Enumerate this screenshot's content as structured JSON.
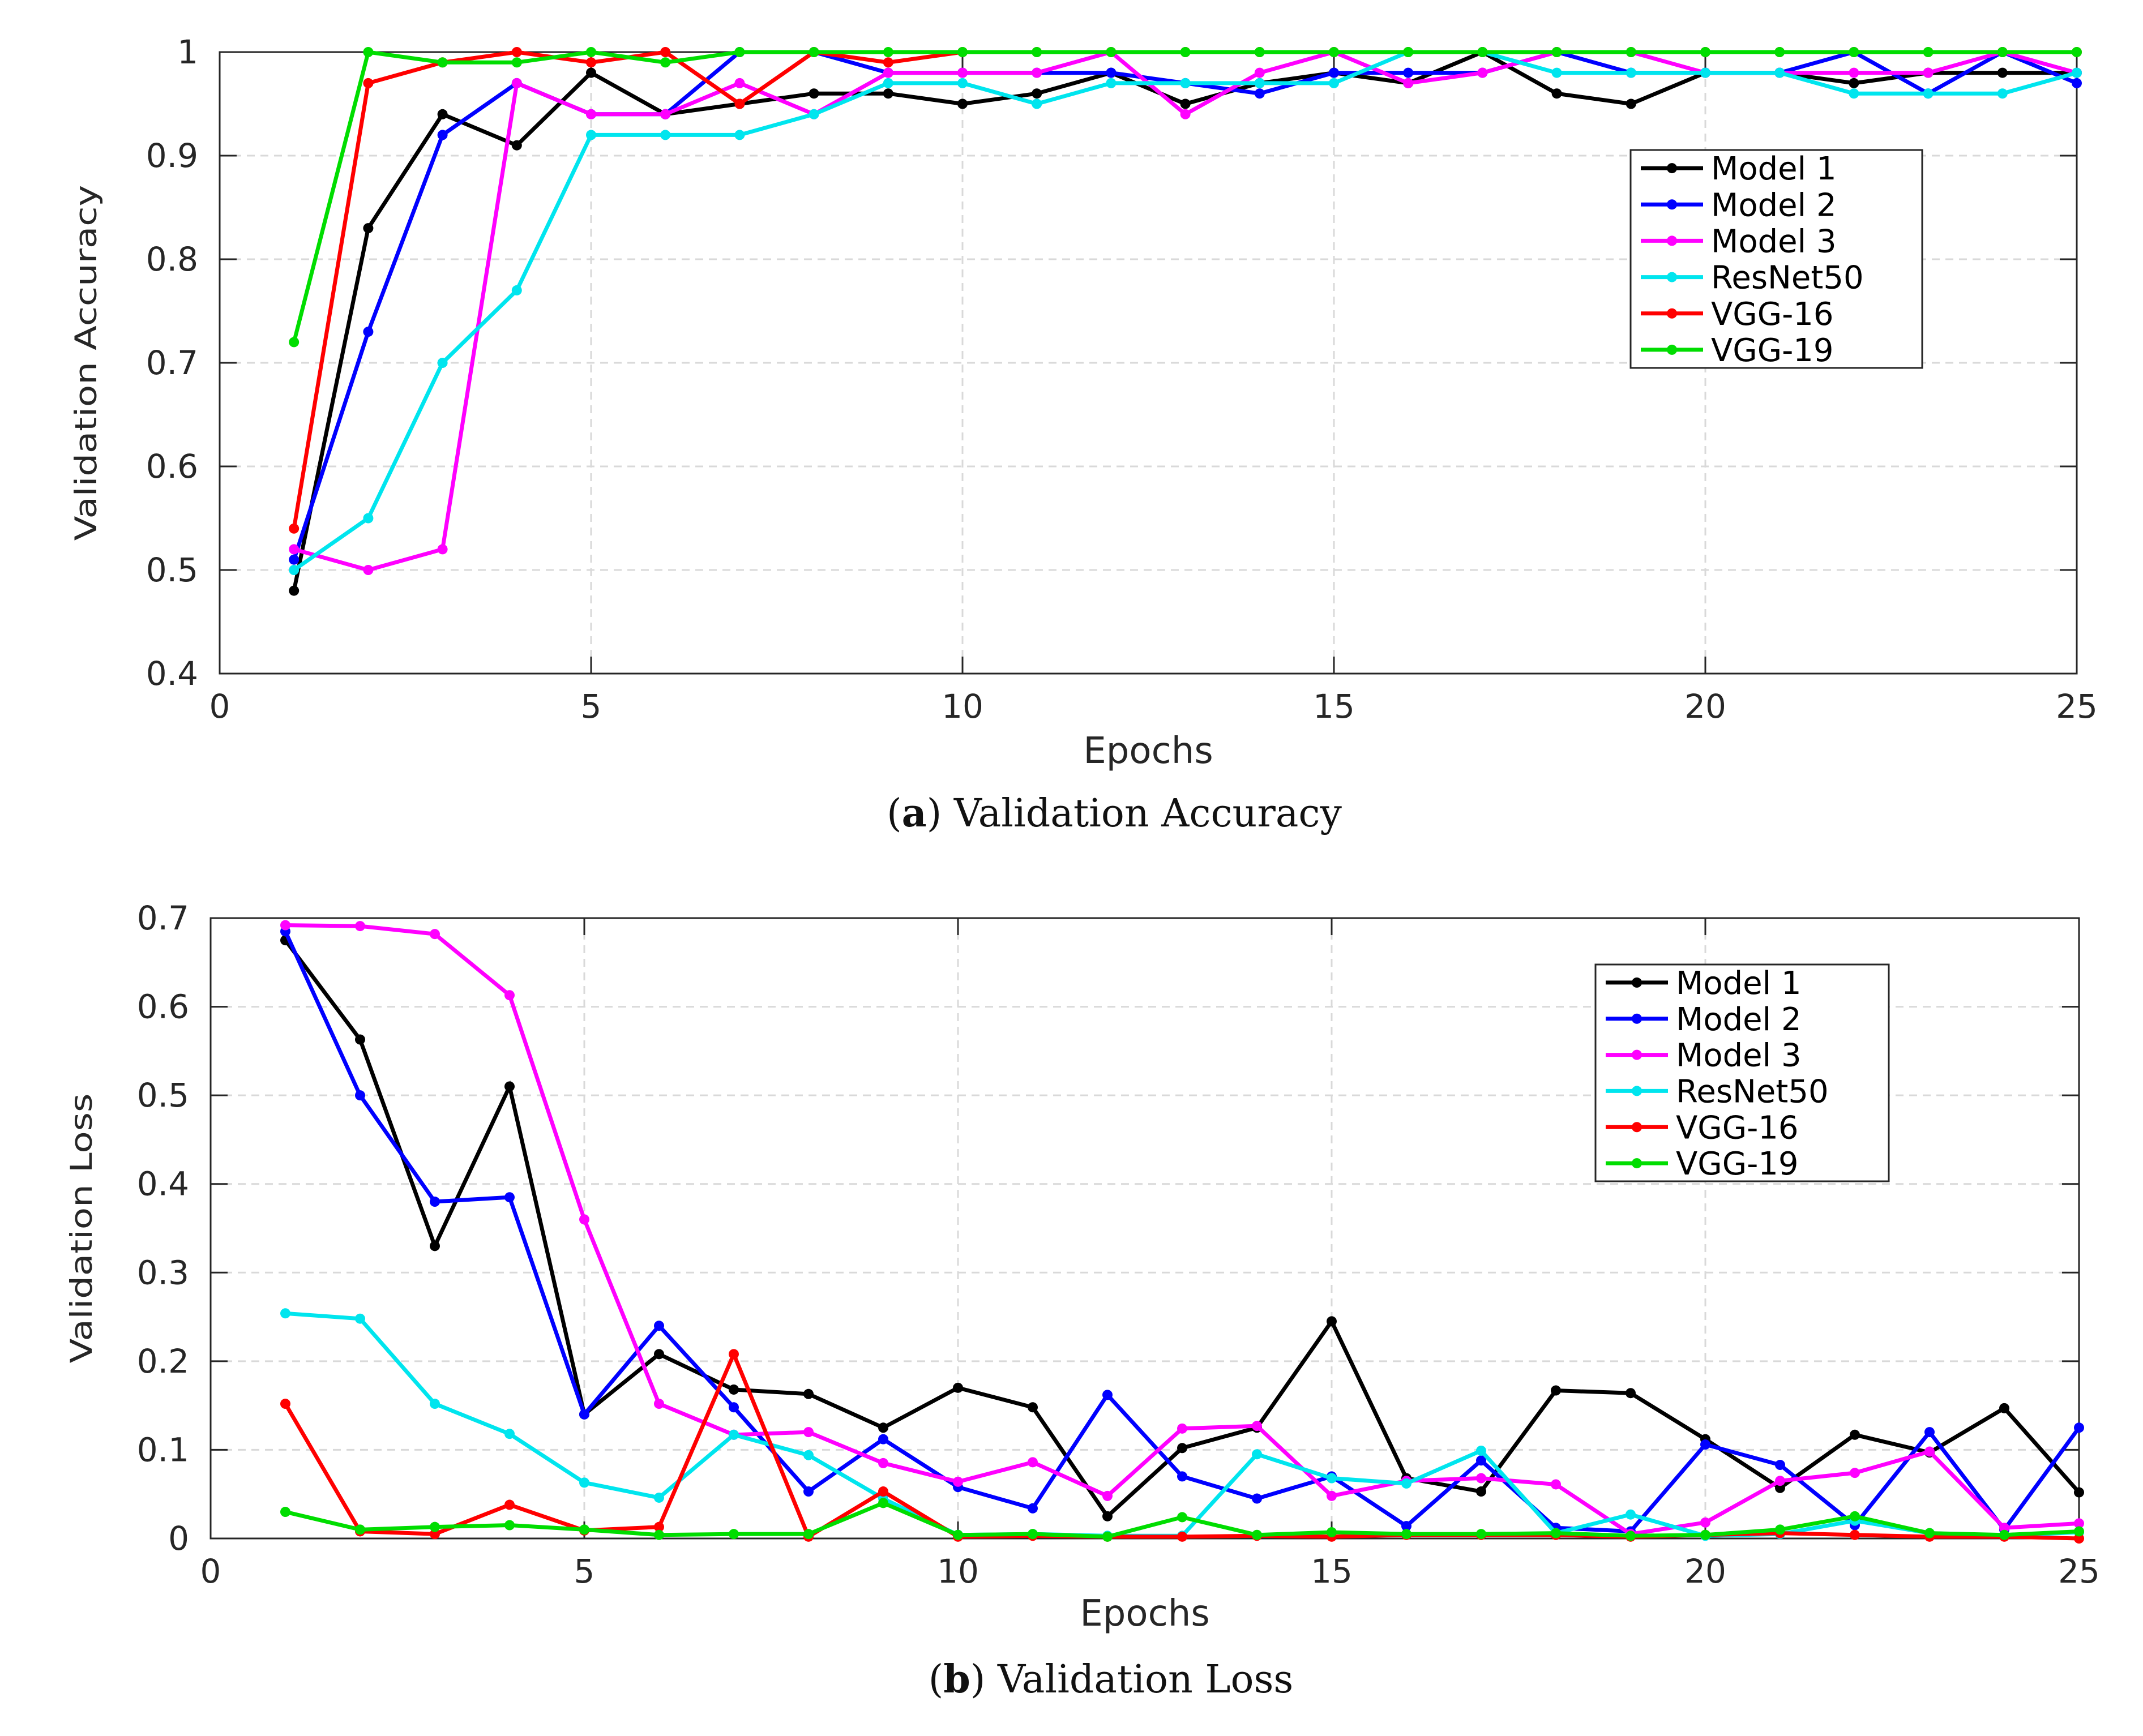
{
  "chart_data": [
    {
      "type": "line",
      "panel_letter": "a",
      "title": "Validation Accuracy",
      "xlabel": "Epochs",
      "ylabel": "Validation Accuracy",
      "xlim": [
        0,
        25
      ],
      "ylim": [
        0.4,
        1
      ],
      "xticks": [
        0,
        5,
        10,
        15,
        20,
        25
      ],
      "xtick_labels": [
        "0",
        "5",
        "10",
        "15",
        "20",
        "25"
      ],
      "yticks": [
        0.4,
        0.5,
        0.6,
        0.7,
        0.8,
        0.9,
        1
      ],
      "ytick_labels": [
        "0.4",
        "0.5",
        "0.6",
        "0.7",
        "0.8",
        "0.9",
        "1"
      ],
      "grid": true,
      "legend_position": "top-right",
      "x": [
        1,
        2,
        3,
        4,
        5,
        6,
        7,
        8,
        9,
        10,
        11,
        12,
        13,
        14,
        15,
        16,
        17,
        18,
        19,
        20,
        21,
        22,
        23,
        24,
        25
      ],
      "series": [
        {
          "name": "Model 1",
          "color": "#000000",
          "values": [
            0.48,
            0.83,
            0.94,
            0.91,
            0.98,
            0.94,
            0.95,
            0.96,
            0.96,
            0.95,
            0.96,
            0.98,
            0.95,
            0.97,
            0.98,
            0.97,
            1.0,
            0.96,
            0.95,
            0.98,
            0.98,
            0.97,
            0.98,
            0.98,
            0.98
          ]
        },
        {
          "name": "Model 2",
          "color": "#0000ff",
          "values": [
            0.51,
            0.73,
            0.92,
            0.97,
            0.94,
            0.94,
            1.0,
            1.0,
            0.98,
            0.98,
            0.98,
            0.98,
            0.97,
            0.96,
            0.98,
            0.98,
            0.98,
            1.0,
            0.98,
            0.98,
            0.98,
            1.0,
            0.96,
            1.0,
            0.97
          ]
        },
        {
          "name": "Model 3",
          "color": "#ff00ff",
          "values": [
            0.52,
            0.5,
            0.52,
            0.97,
            0.94,
            0.94,
            0.97,
            0.94,
            0.98,
            0.98,
            0.98,
            1.0,
            0.94,
            0.98,
            1.0,
            0.97,
            0.98,
            1.0,
            1.0,
            0.98,
            0.98,
            0.98,
            0.98,
            1.0,
            0.98
          ]
        },
        {
          "name": "ResNet50",
          "color": "#00e5ee",
          "values": [
            0.5,
            0.55,
            0.7,
            0.77,
            0.92,
            0.92,
            0.92,
            0.94,
            0.97,
            0.97,
            0.95,
            0.97,
            0.97,
            0.97,
            0.97,
            1.0,
            1.0,
            0.98,
            0.98,
            0.98,
            0.98,
            0.96,
            0.96,
            0.96,
            0.98
          ]
        },
        {
          "name": "VGG-16",
          "color": "#ff0000",
          "values": [
            0.54,
            0.97,
            0.99,
            1.0,
            0.99,
            1.0,
            0.95,
            1.0,
            0.99,
            1.0,
            1.0,
            1.0,
            1.0,
            1.0,
            1.0,
            1.0,
            1.0,
            1.0,
            1.0,
            1.0,
            1.0,
            1.0,
            1.0,
            1.0,
            1.0
          ]
        },
        {
          "name": "VGG-19",
          "color": "#00dd00",
          "values": [
            0.72,
            1.0,
            0.99,
            0.99,
            1.0,
            0.99,
            1.0,
            1.0,
            1.0,
            1.0,
            1.0,
            1.0,
            1.0,
            1.0,
            1.0,
            1.0,
            1.0,
            1.0,
            1.0,
            1.0,
            1.0,
            1.0,
            1.0,
            1.0,
            1.0
          ]
        }
      ]
    },
    {
      "type": "line",
      "panel_letter": "b",
      "title": "Validation Loss",
      "xlabel": "Epochs",
      "ylabel": "Validation Loss",
      "xlim": [
        0,
        25
      ],
      "ylim": [
        0,
        0.7
      ],
      "xticks": [
        0,
        5,
        10,
        15,
        20,
        25
      ],
      "xtick_labels": [
        "0",
        "5",
        "10",
        "15",
        "20",
        "25"
      ],
      "yticks": [
        0,
        0.1,
        0.2,
        0.3,
        0.4,
        0.5,
        0.6,
        0.7
      ],
      "ytick_labels": [
        "0",
        "0.1",
        "0.2",
        "0.3",
        "0.4",
        "0.5",
        "0.6",
        "0.7"
      ],
      "grid": true,
      "legend_position": "top-right",
      "x": [
        1,
        2,
        3,
        4,
        5,
        6,
        7,
        8,
        9,
        10,
        11,
        12,
        13,
        14,
        15,
        16,
        17,
        18,
        19,
        20,
        21,
        22,
        23,
        24,
        25
      ],
      "series": [
        {
          "name": "Model 1",
          "color": "#000000",
          "values": [
            0.675,
            0.563,
            0.33,
            0.51,
            0.14,
            0.208,
            0.168,
            0.163,
            0.125,
            0.17,
            0.148,
            0.025,
            0.102,
            0.125,
            0.245,
            0.068,
            0.053,
            0.167,
            0.164,
            0.112,
            0.057,
            0.117,
            0.097,
            0.147,
            0.052
          ]
        },
        {
          "name": "Model 2",
          "color": "#0000ff",
          "values": [
            0.685,
            0.5,
            0.38,
            0.385,
            0.14,
            0.24,
            0.148,
            0.053,
            0.112,
            0.058,
            0.034,
            0.162,
            0.07,
            0.045,
            0.07,
            0.014,
            0.088,
            0.012,
            0.008,
            0.106,
            0.083,
            0.015,
            0.12,
            0.01,
            0.125
          ]
        },
        {
          "name": "Model 3",
          "color": "#ff00ff",
          "values": [
            0.692,
            0.691,
            0.682,
            0.613,
            0.36,
            0.152,
            0.117,
            0.12,
            0.085,
            0.064,
            0.086,
            0.048,
            0.124,
            0.127,
            0.048,
            0.065,
            0.068,
            0.061,
            0.005,
            0.018,
            0.065,
            0.074,
            0.098,
            0.012,
            0.017
          ]
        },
        {
          "name": "ResNet50",
          "color": "#00e5ee",
          "values": [
            0.254,
            0.248,
            0.152,
            0.118,
            0.063,
            0.046,
            0.117,
            0.094,
            0.045,
            0.004,
            0.005,
            0.003,
            0.003,
            0.095,
            0.068,
            0.062,
            0.099,
            0.006,
            0.027,
            0.003,
            0.005,
            0.02,
            0.006,
            0.003,
            0.007
          ]
        },
        {
          "name": "VGG-16",
          "color": "#ff0000",
          "values": [
            0.152,
            0.008,
            0.005,
            0.038,
            0.009,
            0.013,
            0.208,
            0.002,
            0.053,
            0.002,
            0.003,
            0.002,
            0.002,
            0.003,
            0.002,
            0.004,
            0.004,
            0.004,
            0.002,
            0.004,
            0.006,
            0.004,
            0.002,
            0.002,
            0.0
          ]
        },
        {
          "name": "VGG-19",
          "color": "#00dd00",
          "values": [
            0.03,
            0.01,
            0.013,
            0.015,
            0.01,
            0.004,
            0.005,
            0.005,
            0.04,
            0.004,
            0.005,
            0.002,
            0.024,
            0.004,
            0.007,
            0.005,
            0.005,
            0.006,
            0.003,
            0.004,
            0.01,
            0.025,
            0.006,
            0.004,
            0.008
          ]
        }
      ]
    }
  ]
}
